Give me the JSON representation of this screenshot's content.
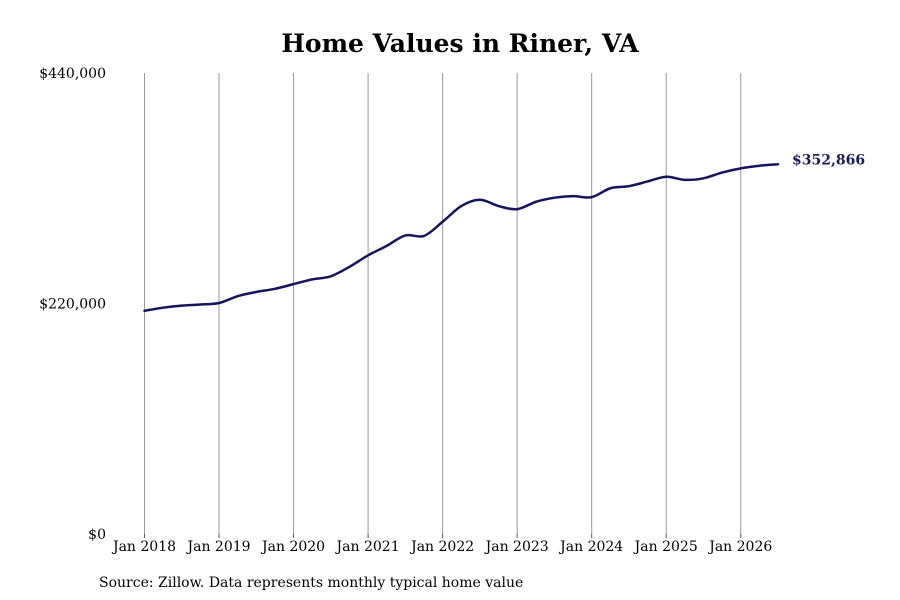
{
  "chart_data": {
    "type": "line",
    "title": "Home Values in Riner, VA",
    "xlabel": "",
    "ylabel": "",
    "ylim": [
      0,
      440000
    ],
    "xlim": [
      "2018-01",
      "2026-07"
    ],
    "y_ticks": [
      {
        "value": 0,
        "label": "$0"
      },
      {
        "value": 220000,
        "label": "$220,000"
      },
      {
        "value": 440000,
        "label": "$440,000"
      }
    ],
    "x_ticks": [
      {
        "value": "2018-01",
        "label": "Jan 2018"
      },
      {
        "value": "2019-01",
        "label": "Jan 2019"
      },
      {
        "value": "2020-01",
        "label": "Jan 2020"
      },
      {
        "value": "2021-01",
        "label": "Jan 2021"
      },
      {
        "value": "2022-01",
        "label": "Jan 2022"
      },
      {
        "value": "2023-01",
        "label": "Jan 2023"
      },
      {
        "value": "2024-01",
        "label": "Jan 2024"
      },
      {
        "value": "2025-01",
        "label": "Jan 2025"
      },
      {
        "value": "2026-01",
        "label": "Jan 2026"
      }
    ],
    "grid": {
      "vertical": true,
      "horizontal": false
    },
    "series": [
      {
        "color": "#14145f",
        "points": [
          {
            "x": "2018-01",
            "y": 213000
          },
          {
            "x": "2018-04",
            "y": 216000
          },
          {
            "x": "2018-07",
            "y": 218000
          },
          {
            "x": "2018-10",
            "y": 219000
          },
          {
            "x": "2019-01",
            "y": 220500
          },
          {
            "x": "2019-04",
            "y": 227000
          },
          {
            "x": "2019-07",
            "y": 231000
          },
          {
            "x": "2019-10",
            "y": 234000
          },
          {
            "x": "2020-01",
            "y": 238500
          },
          {
            "x": "2020-04",
            "y": 243000
          },
          {
            "x": "2020-07",
            "y": 246000
          },
          {
            "x": "2020-10",
            "y": 255000
          },
          {
            "x": "2021-01",
            "y": 266000
          },
          {
            "x": "2021-04",
            "y": 275000
          },
          {
            "x": "2021-07",
            "y": 285000
          },
          {
            "x": "2021-10",
            "y": 284500
          },
          {
            "x": "2022-01",
            "y": 298000
          },
          {
            "x": "2022-04",
            "y": 313000
          },
          {
            "x": "2022-07",
            "y": 319000
          },
          {
            "x": "2022-10",
            "y": 313000
          },
          {
            "x": "2023-01",
            "y": 310000
          },
          {
            "x": "2023-04",
            "y": 317000
          },
          {
            "x": "2023-07",
            "y": 321000
          },
          {
            "x": "2023-10",
            "y": 322500
          },
          {
            "x": "2024-01",
            "y": 321500
          },
          {
            "x": "2024-04",
            "y": 330000
          },
          {
            "x": "2024-07",
            "y": 332000
          },
          {
            "x": "2024-10",
            "y": 336500
          },
          {
            "x": "2025-01",
            "y": 341000
          },
          {
            "x": "2025-04",
            "y": 338000
          },
          {
            "x": "2025-07",
            "y": 339500
          },
          {
            "x": "2025-10",
            "y": 345000
          },
          {
            "x": "2026-01",
            "y": 349000
          },
          {
            "x": "2026-04",
            "y": 351500
          },
          {
            "x": "2026-07",
            "y": 352866
          }
        ]
      }
    ],
    "end_label": "$352,866",
    "source": "Source: Zillow. Data represents monthly typical home value"
  }
}
